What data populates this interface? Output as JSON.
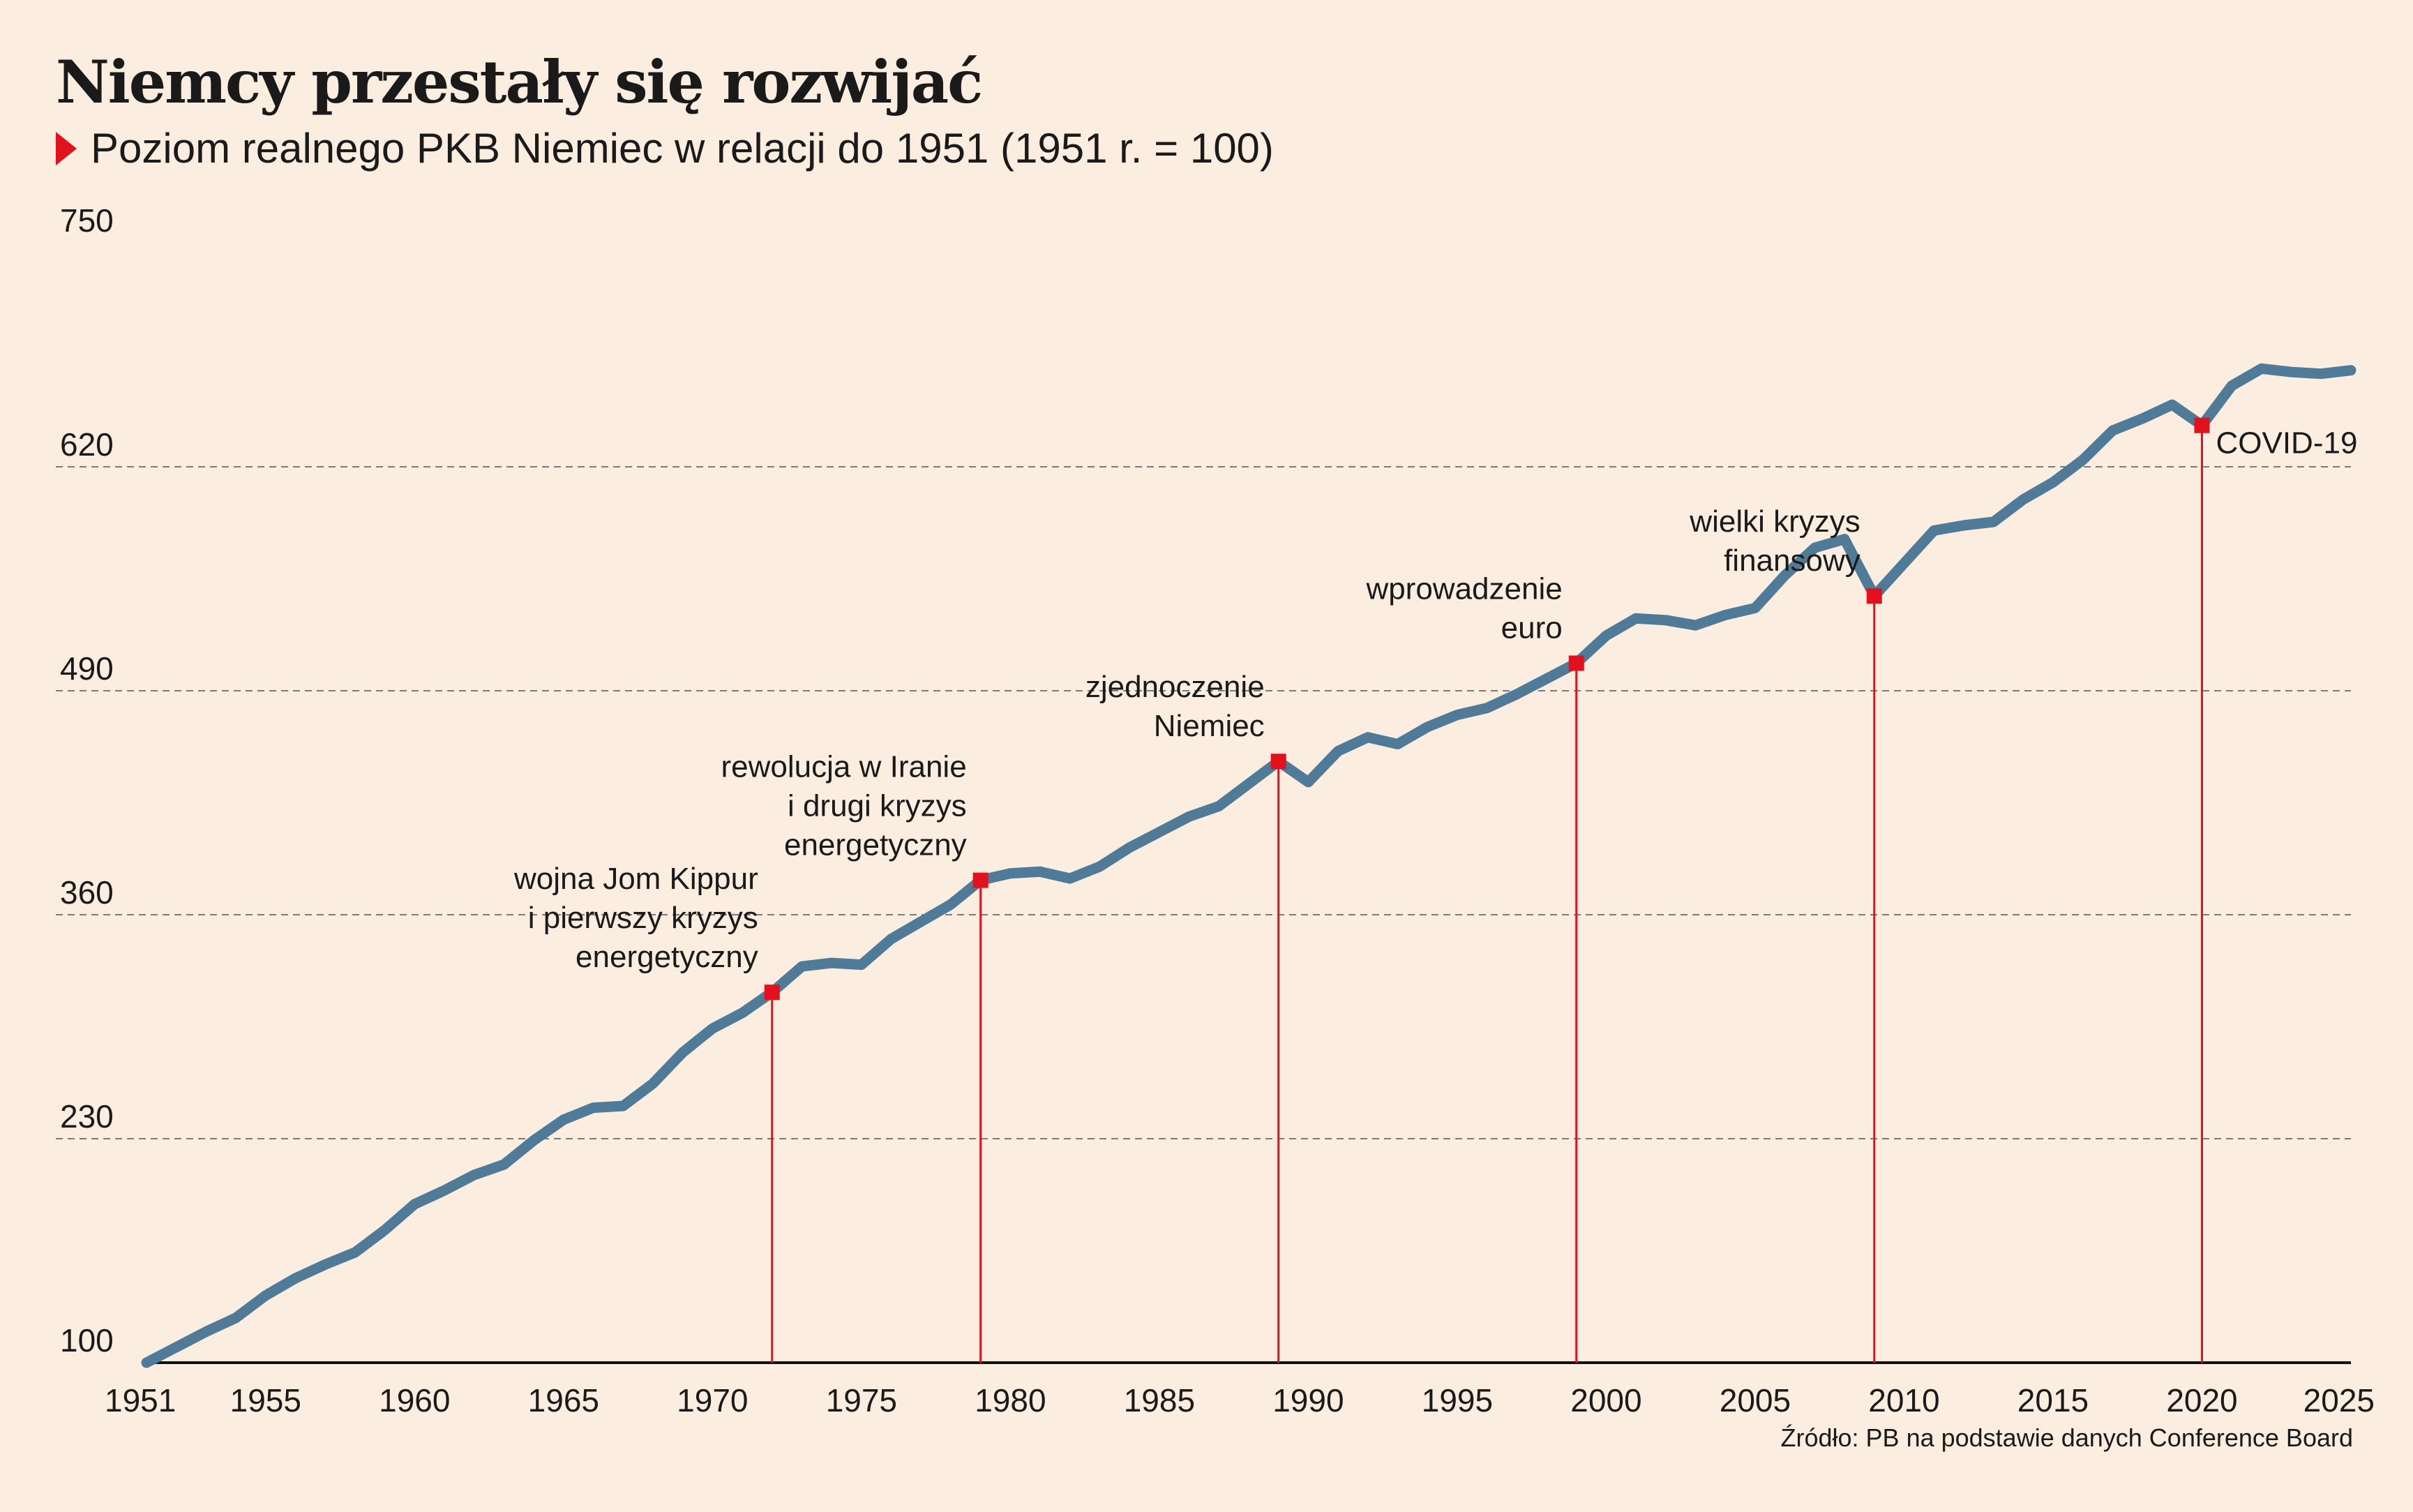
{
  "chart_data": {
    "type": "line",
    "title": "Niemcy przestały się rozwijać",
    "subtitle": "Poziom realnego PKB Niemiec w relacji do 1951 (1951 r. = 100)",
    "source": "Źródło: PB na podstawie danych Conference Board",
    "xlim": [
      1951,
      2025
    ],
    "ylim": [
      100,
      750
    ],
    "x_ticks": [
      1951,
      1955,
      1960,
      1965,
      1970,
      1975,
      1980,
      1985,
      1990,
      1995,
      2000,
      2005,
      2010,
      2015,
      2020,
      2025
    ],
    "y_ticks": [
      100,
      230,
      360,
      490,
      620,
      750
    ],
    "grid": "horizontal-dashed",
    "series": [
      {
        "color": "#4f7a98",
        "x": [
          1951,
          1952,
          1953,
          1954,
          1955,
          1956,
          1957,
          1958,
          1959,
          1960,
          1961,
          1962,
          1963,
          1964,
          1965,
          1966,
          1967,
          1968,
          1969,
          1970,
          1971,
          1972,
          1973,
          1974,
          1975,
          1976,
          1977,
          1978,
          1979,
          1980,
          1981,
          1982,
          1983,
          1984,
          1985,
          1986,
          1987,
          1988,
          1989,
          1990,
          1991,
          1992,
          1993,
          1994,
          1995,
          1996,
          1997,
          1998,
          1999,
          2000,
          2001,
          2002,
          2003,
          2004,
          2005,
          2006,
          2007,
          2008,
          2009,
          2010,
          2011,
          2012,
          2013,
          2014,
          2015,
          2016,
          2017,
          2018,
          2019,
          2020,
          2021,
          2022,
          2023,
          2024,
          2025
        ],
        "y": [
          100,
          109,
          118,
          126,
          139,
          149,
          157,
          164,
          177,
          192,
          200,
          209,
          215,
          229,
          241,
          248,
          249,
          262,
          280,
          294,
          303,
          315,
          330,
          332,
          331,
          346,
          356,
          366,
          380,
          384,
          385,
          381,
          388,
          399,
          408,
          417,
          423,
          436,
          449,
          437,
          455,
          463,
          459,
          469,
          476,
          480,
          488,
          497,
          506,
          522,
          532,
          531,
          528,
          534,
          538,
          557,
          573,
          578,
          545,
          564,
          583,
          586,
          588,
          601,
          611,
          624,
          641,
          648,
          656,
          644,
          667,
          677,
          675,
          674,
          676
        ]
      }
    ],
    "annotations": [
      {
        "x": 1972,
        "y": 315,
        "lines": [
          "wojna Jom Kippur",
          "i pierwszy kryzys",
          "energetyczny"
        ]
      },
      {
        "x": 1979,
        "y": 380,
        "lines": [
          "rewolucja w Iranie",
          "i drugi kryzys",
          "energetyczny"
        ]
      },
      {
        "x": 1989,
        "y": 449,
        "lines": [
          "zjednoczenie",
          "Niemiec"
        ]
      },
      {
        "x": 1999,
        "y": 506,
        "lines": [
          "wprowadzenie",
          "euro"
        ]
      },
      {
        "x": 2009,
        "y": 545,
        "lines": [
          "wielki kryzys",
          "finansowy"
        ]
      },
      {
        "x": 2020,
        "y": 644,
        "lines": [
          "COVID-19"
        ]
      }
    ],
    "colors": {
      "background": "#fbede0",
      "line": "#4f7a98",
      "highlight": "#e3101e",
      "grid": "#7a7a7a"
    }
  }
}
